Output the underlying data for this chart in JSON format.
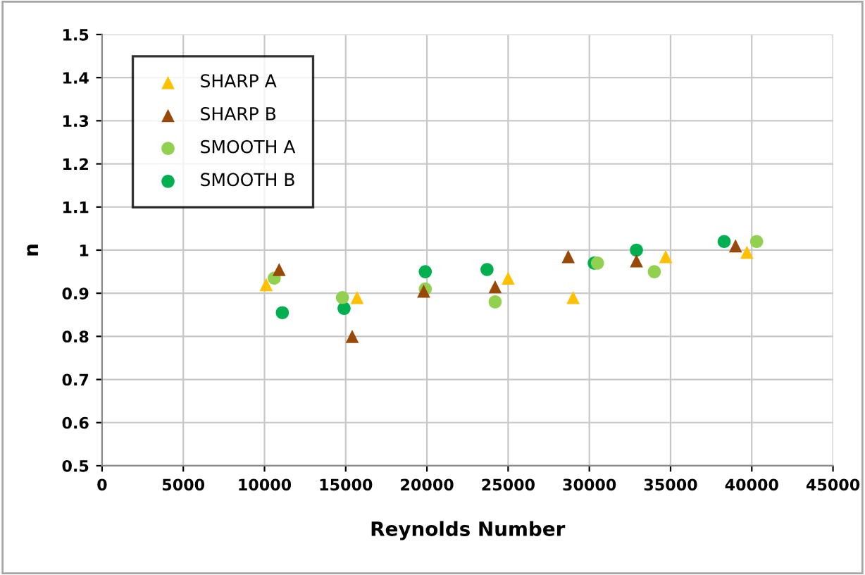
{
  "chart_data": {
    "type": "scatter",
    "xlabel": "Reynolds Number",
    "ylabel": "n",
    "xlim": [
      0,
      45000
    ],
    "xticks": [
      0,
      5000,
      10000,
      15000,
      20000,
      25000,
      30000,
      35000,
      40000,
      45000
    ],
    "ylim": [
      0.5,
      1.5
    ],
    "yticks": [
      0.5,
      0.6,
      0.7,
      0.8,
      0.9,
      1,
      1.1,
      1.2,
      1.3,
      1.4,
      1.5
    ],
    "grid": true,
    "legend": "top left",
    "series": [
      {
        "name": "SHARP A",
        "color": "#ffc000",
        "marker": "triangle",
        "x": [
          10100,
          15700,
          25000,
          29000,
          34700,
          39700
        ],
        "values": [
          0.92,
          0.89,
          0.935,
          0.89,
          0.985,
          0.995
        ]
      },
      {
        "name": "SHARP B",
        "color": "#984807",
        "marker": "triangle",
        "x": [
          10900,
          15400,
          19800,
          24200,
          28700,
          32900,
          39000
        ],
        "values": [
          0.955,
          0.8,
          0.905,
          0.915,
          0.985,
          0.975,
          1.01
        ]
      },
      {
        "name": "SMOOTH A",
        "color": "#92d050",
        "marker": "circle",
        "x": [
          10600,
          14800,
          19900,
          24200,
          30500,
          34000,
          40300
        ],
        "values": [
          0.935,
          0.89,
          0.91,
          0.88,
          0.97,
          0.95,
          1.02
        ]
      },
      {
        "name": "SMOOTH B",
        "color": "#00b050",
        "marker": "circle",
        "x": [
          11100,
          14900,
          19900,
          23700,
          30300,
          32900,
          38300
        ],
        "values": [
          0.855,
          0.865,
          0.95,
          0.955,
          0.97,
          1.0,
          1.02
        ]
      }
    ]
  }
}
